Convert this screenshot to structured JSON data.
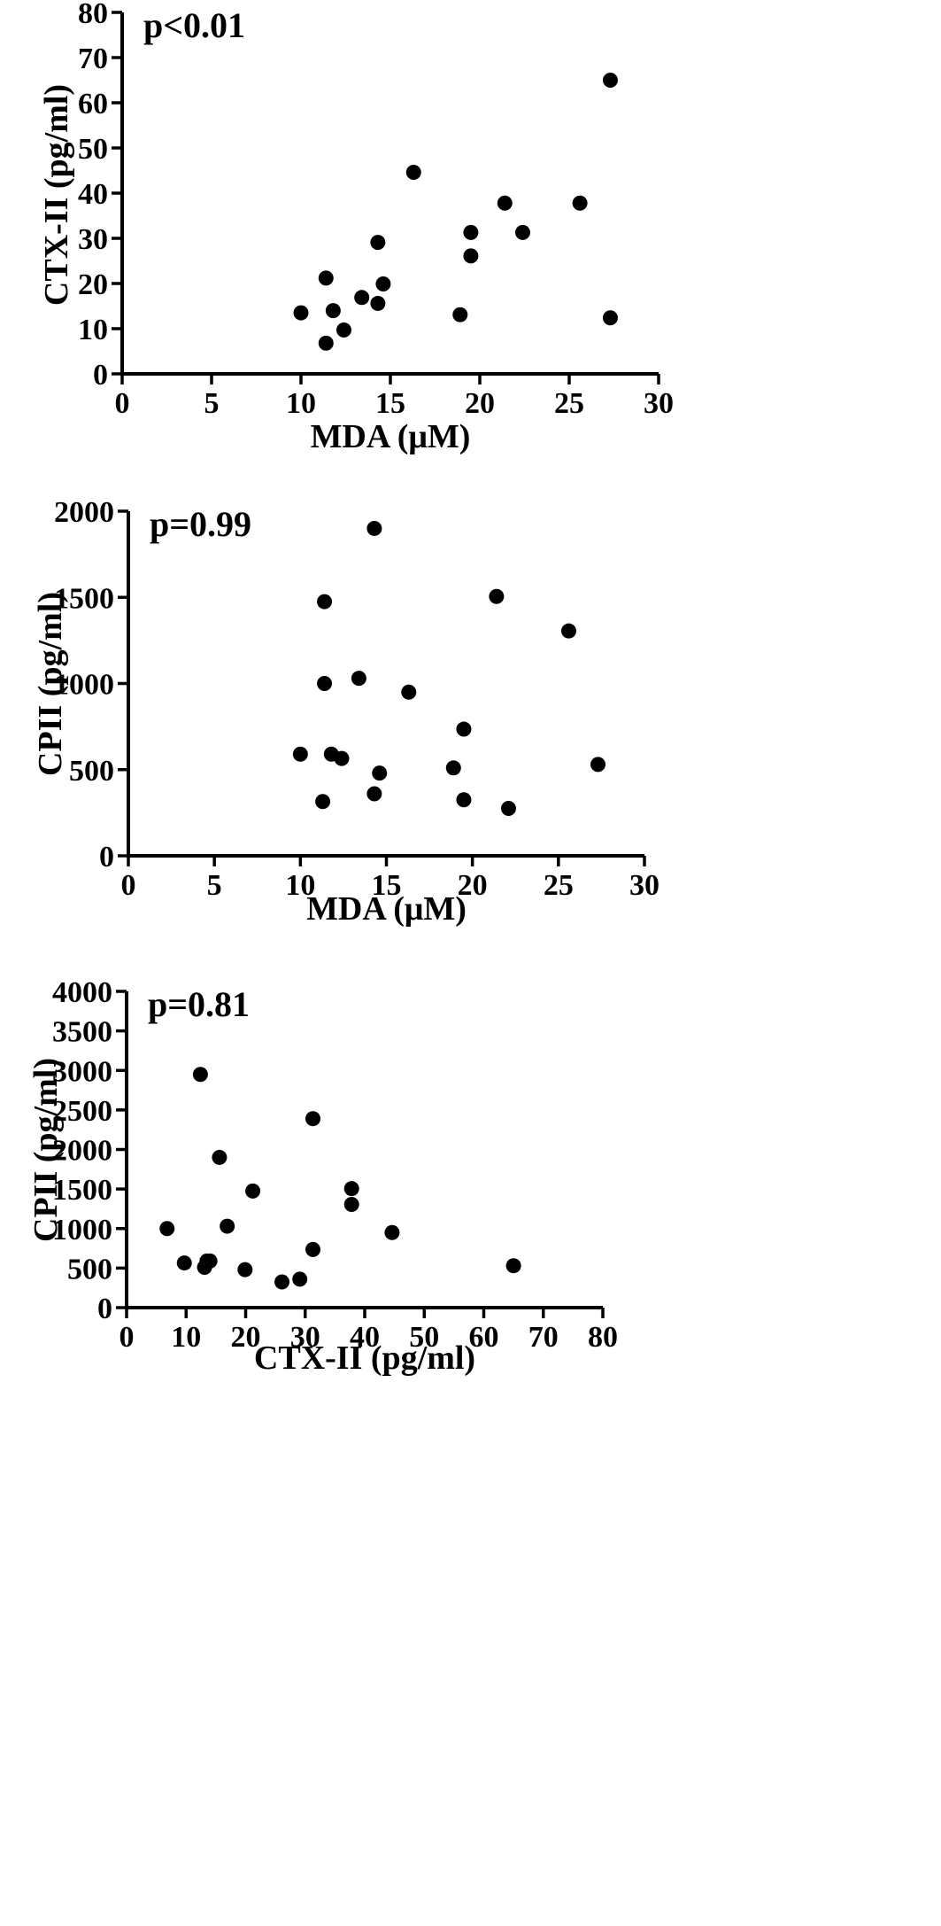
{
  "chart_data": [
    {
      "type": "scatter",
      "annotation": "p<0.01",
      "xlabel": "MDA (μM)",
      "ylabel": "CTX-II (pg/ml)",
      "xlim": [
        0,
        30
      ],
      "ylim": [
        0,
        80
      ],
      "xticks": [
        0,
        5,
        10,
        15,
        20,
        25,
        30
      ],
      "yticks": [
        0,
        10,
        20,
        30,
        40,
        50,
        60,
        70,
        80
      ],
      "points": [
        {
          "x": 10.0,
          "y": 13.5
        },
        {
          "x": 11.4,
          "y": 21.2
        },
        {
          "x": 11.4,
          "y": 6.8
        },
        {
          "x": 11.8,
          "y": 14.0
        },
        {
          "x": 12.4,
          "y": 9.7
        },
        {
          "x": 13.4,
          "y": 16.9
        },
        {
          "x": 14.3,
          "y": 29.1
        },
        {
          "x": 14.3,
          "y": 15.6
        },
        {
          "x": 14.6,
          "y": 19.9
        },
        {
          "x": 16.3,
          "y": 44.6
        },
        {
          "x": 18.9,
          "y": 13.1
        },
        {
          "x": 19.5,
          "y": 31.3
        },
        {
          "x": 19.5,
          "y": 26.1
        },
        {
          "x": 21.4,
          "y": 37.8
        },
        {
          "x": 22.4,
          "y": 31.3
        },
        {
          "x": 25.6,
          "y": 37.8
        },
        {
          "x": 27.3,
          "y": 65.0
        },
        {
          "x": 27.3,
          "y": 12.4
        }
      ]
    },
    {
      "type": "scatter",
      "annotation": "p=0.99",
      "xlabel": "MDA (μM)",
      "ylabel": "CPII (pg/ml)",
      "xlim": [
        0,
        30
      ],
      "ylim": [
        0,
        2000
      ],
      "xticks": [
        0,
        5,
        10,
        15,
        20,
        25,
        30
      ],
      "yticks": [
        0,
        500,
        1000,
        1500,
        2000
      ],
      "points": [
        {
          "x": 10.0,
          "y": 590
        },
        {
          "x": 11.3,
          "y": 315
        },
        {
          "x": 11.4,
          "y": 1475
        },
        {
          "x": 11.4,
          "y": 1000
        },
        {
          "x": 11.8,
          "y": 590
        },
        {
          "x": 12.4,
          "y": 565
        },
        {
          "x": 13.4,
          "y": 1030
        },
        {
          "x": 14.3,
          "y": 1900
        },
        {
          "x": 14.3,
          "y": 360
        },
        {
          "x": 14.6,
          "y": 480
        },
        {
          "x": 16.3,
          "y": 950
        },
        {
          "x": 18.9,
          "y": 510
        },
        {
          "x": 19.5,
          "y": 735
        },
        {
          "x": 19.5,
          "y": 325
        },
        {
          "x": 21.4,
          "y": 1505
        },
        {
          "x": 22.1,
          "y": 275
        },
        {
          "x": 25.6,
          "y": 1305
        },
        {
          "x": 27.3,
          "y": 530
        }
      ]
    },
    {
      "type": "scatter",
      "annotation": "p=0.81",
      "xlabel": "CTX-II (pg/ml)",
      "ylabel": "CPII (pg/ml)",
      "xlim": [
        0,
        80
      ],
      "ylim": [
        0,
        4000
      ],
      "xticks": [
        0,
        10,
        20,
        30,
        40,
        50,
        60,
        70,
        80
      ],
      "yticks": [
        0,
        500,
        1000,
        1500,
        2000,
        2500,
        3000,
        3500,
        4000
      ],
      "points": [
        {
          "x": 6.8,
          "y": 1000
        },
        {
          "x": 9.7,
          "y": 565
        },
        {
          "x": 12.4,
          "y": 2950
        },
        {
          "x": 13.1,
          "y": 510
        },
        {
          "x": 13.5,
          "y": 590
        },
        {
          "x": 14.0,
          "y": 590
        },
        {
          "x": 15.6,
          "y": 1900
        },
        {
          "x": 16.9,
          "y": 1030
        },
        {
          "x": 19.9,
          "y": 480
        },
        {
          "x": 21.2,
          "y": 1475
        },
        {
          "x": 26.1,
          "y": 325
        },
        {
          "x": 29.1,
          "y": 360
        },
        {
          "x": 31.3,
          "y": 2390
        },
        {
          "x": 31.3,
          "y": 735
        },
        {
          "x": 37.8,
          "y": 1505
        },
        {
          "x": 37.8,
          "y": 1305
        },
        {
          "x": 44.6,
          "y": 950
        },
        {
          "x": 65.0,
          "y": 530
        }
      ]
    }
  ]
}
